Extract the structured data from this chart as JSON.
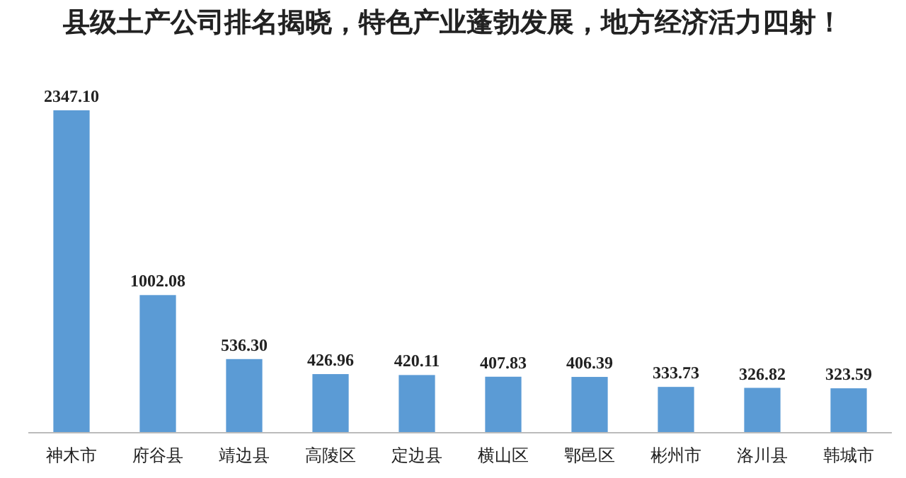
{
  "chart_data": {
    "type": "bar",
    "title": "县级土产公司排名揭晓，特色产业蓬勃发展，地方经济活力四射！",
    "categories": [
      "神木市",
      "府谷县",
      "靖边县",
      "高陵区",
      "定边县",
      "横山区",
      "鄂邑区",
      "彬州市",
      "洛川县",
      "韩城市"
    ],
    "values": [
      2347.1,
      1002.08,
      536.3,
      426.96,
      420.11,
      407.83,
      406.39,
      333.73,
      326.82,
      323.59
    ],
    "value_labels": [
      "2347.10",
      "1002.08",
      "536.30",
      "426.96",
      "420.11",
      "407.83",
      "406.39",
      "333.73",
      "326.82",
      "323.59"
    ],
    "color": "#5b9bd5"
  }
}
